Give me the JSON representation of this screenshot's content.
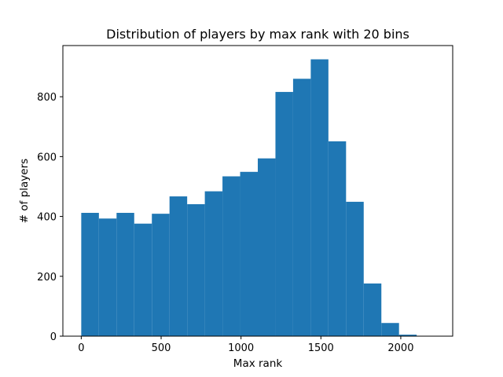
{
  "chart_data": {
    "type": "bar",
    "title": "Distribution of players by max rank with 20 bins",
    "xlabel": "Max rank",
    "ylabel": "# of players",
    "bin_edges": [
      0,
      110.5,
      221,
      331.5,
      442,
      552.5,
      663,
      773.5,
      884,
      994.5,
      1105,
      1215.5,
      1326,
      1436.5,
      1547,
      1657.5,
      1768,
      1878.5,
      1989,
      2099.5,
      2210
    ],
    "values": [
      412,
      393,
      412,
      376,
      409,
      467,
      441,
      484,
      534,
      549,
      594,
      816,
      860,
      925,
      651,
      449,
      176,
      44,
      5,
      1
    ],
    "xlim": [
      -115,
      2325
    ],
    "ylim": [
      0,
      971
    ],
    "xticks": [
      0,
      500,
      1000,
      1500,
      2000
    ],
    "xtick_labels": [
      "0",
      "500",
      "1000",
      "1500",
      "2000"
    ],
    "yticks": [
      0,
      200,
      400,
      600,
      800
    ],
    "ytick_labels": [
      "0",
      "200",
      "400",
      "600",
      "800"
    ],
    "bar_color": "#1f77b4",
    "grid": false,
    "legend": "none"
  }
}
